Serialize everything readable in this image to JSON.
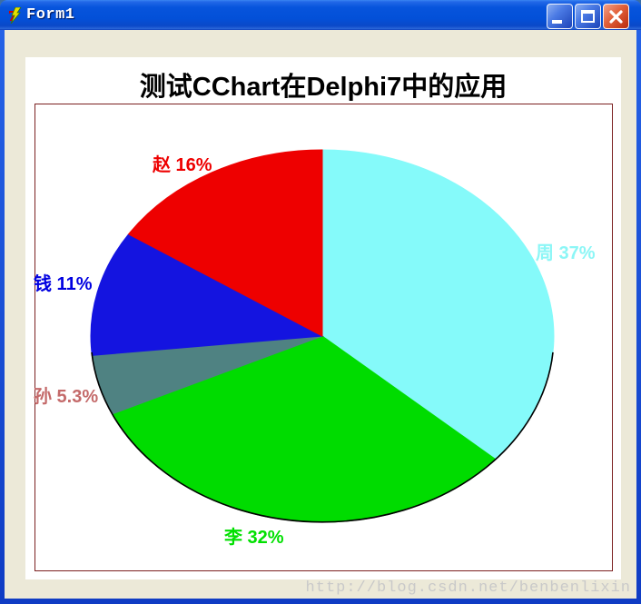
{
  "window": {
    "title": "Form1",
    "controls": {
      "minimize": "minimize",
      "maximize": "maximize",
      "close": "close"
    }
  },
  "chart_data": {
    "type": "pie",
    "title": "测试CChart在Delphi7中的应用",
    "legend_position": "none",
    "start_angle_deg": 0,
    "direction": "clockwise",
    "outline_color": "#000000",
    "slices": [
      {
        "name": "周",
        "value": 37,
        "pct_label": "周 37%",
        "color": "#85FAFA",
        "label_color": "#8CF6F6"
      },
      {
        "name": "李",
        "value": 32,
        "pct_label": "李 32%",
        "color": "#00DC00",
        "label_color": "#00E000"
      },
      {
        "name": "孙",
        "value": 5.3,
        "pct_label": "孙 5.3%",
        "color": "#4F8282",
        "label_color": "#C46A6A"
      },
      {
        "name": "钱",
        "value": 11,
        "pct_label": "钱 11%",
        "color": "#1414E0",
        "label_color": "#0000E0"
      },
      {
        "name": "赵",
        "value": 16,
        "pct_label": "赵 16%",
        "color": "#EE0000",
        "label_color": "#EE0000"
      }
    ]
  },
  "watermark": {
    "text": "http://blog.csdn.net/benbenlixin"
  }
}
